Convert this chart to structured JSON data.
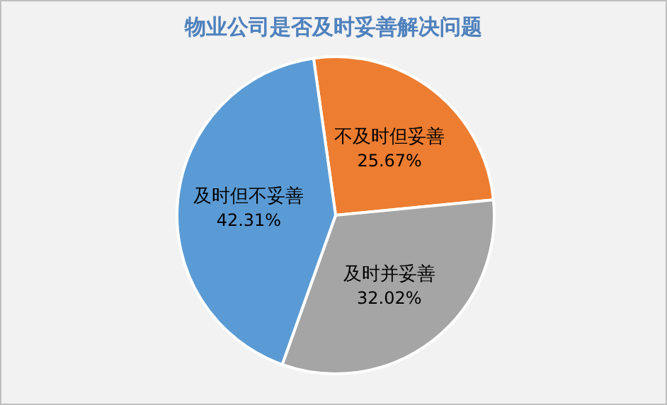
{
  "chart_data": {
    "type": "pie",
    "title": "物业公司是否及时妥善解决问题",
    "categories": [
      "不及时但妥善",
      "及时并妥善",
      "及时但不妥善"
    ],
    "values": [
      25.67,
      32.02,
      42.31
    ],
    "colors": [
      "#ed7d31",
      "#a5a5a5",
      "#5b9bd5"
    ],
    "value_labels": [
      "25.67%",
      "32.02%",
      "42.31%"
    ]
  }
}
